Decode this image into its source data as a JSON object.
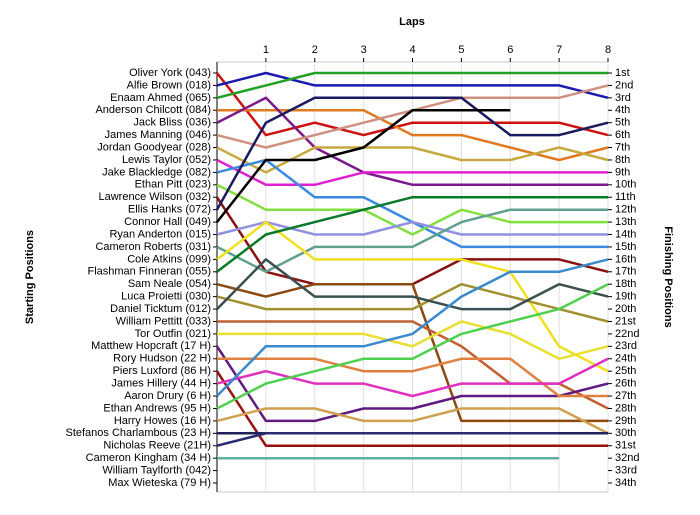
{
  "chart_data": {
    "type": "lap",
    "title": "Laps",
    "y_label": "Starting Positions",
    "y2_label": "Finishing Positions",
    "x": [
      0,
      1,
      2,
      3,
      4,
      5,
      6,
      7,
      8
    ],
    "xlim": [
      0,
      8
    ],
    "xticks": [
      1,
      2,
      3,
      4,
      5,
      6,
      7,
      8
    ],
    "ylim": [
      1,
      34
    ],
    "grid": true,
    "y2ticks": [
      {
        "value": 1,
        "label": "1st"
      },
      {
        "value": 2,
        "label": "2nd"
      },
      {
        "value": 3,
        "label": "3rd"
      },
      {
        "value": 4,
        "label": "4th"
      },
      {
        "value": 5,
        "label": "5th"
      },
      {
        "value": 6,
        "label": "6th"
      },
      {
        "value": 7,
        "label": "7th"
      },
      {
        "value": 8,
        "label": "8th"
      },
      {
        "value": 9,
        "label": "9th"
      },
      {
        "value": 10,
        "label": "10th"
      },
      {
        "value": 11,
        "label": "11th"
      },
      {
        "value": 12,
        "label": "12th"
      },
      {
        "value": 13,
        "label": "13th"
      },
      {
        "value": 14,
        "label": "14th"
      },
      {
        "value": 15,
        "label": "15th"
      },
      {
        "value": 16,
        "label": "16th"
      },
      {
        "value": 17,
        "label": "17th"
      },
      {
        "value": 18,
        "label": "18th"
      },
      {
        "value": 19,
        "label": "19th"
      },
      {
        "value": 20,
        "label": "20th"
      },
      {
        "value": 21,
        "label": "21st"
      },
      {
        "value": 22,
        "label": "22nd"
      },
      {
        "value": 23,
        "label": "23rd"
      },
      {
        "value": 24,
        "label": "24th"
      },
      {
        "value": 25,
        "label": "25th"
      },
      {
        "value": 26,
        "label": "26th"
      },
      {
        "value": 27,
        "label": "27th"
      },
      {
        "value": 28,
        "label": "28th"
      },
      {
        "value": 29,
        "label": "29th"
      },
      {
        "value": 30,
        "label": "30th"
      },
      {
        "value": 31,
        "label": "31st"
      },
      {
        "value": 32,
        "label": "32nd"
      },
      {
        "value": 33,
        "label": "33rd"
      },
      {
        "value": 34,
        "label": "34th"
      }
    ],
    "series": [
      {
        "name": "Oliver York (043)",
        "color": "#cc1111",
        "values": [
          1,
          6,
          5,
          6,
          5,
          5,
          5,
          5,
          6
        ]
      },
      {
        "name": "Alfie Brown (018)",
        "color": "#1a1ab0",
        "values": [
          2,
          1,
          2,
          2,
          2,
          2,
          2,
          2,
          3
        ]
      },
      {
        "name": "Enaam Ahmed (065)",
        "color": "#22a022",
        "values": [
          3,
          2,
          1,
          1,
          1,
          1,
          1,
          1,
          1
        ]
      },
      {
        "name": "Anderson Chilcott (084)",
        "color": "#e07a20",
        "values": [
          4,
          4,
          4,
          4,
          6,
          6,
          7,
          8,
          7
        ]
      },
      {
        "name": "Jack Bliss (036)",
        "color": "#7a1a8a",
        "values": [
          5,
          3,
          7,
          9,
          10,
          10,
          10,
          10,
          10
        ]
      },
      {
        "name": "James Manning (046)",
        "color": "#d09080",
        "values": [
          6,
          7,
          6,
          5,
          4,
          3,
          3,
          3,
          2
        ]
      },
      {
        "name": "Jordan Goodyear (028)",
        "color": "#c8a840",
        "values": [
          7,
          9,
          7,
          7,
          7,
          8,
          8,
          7,
          8
        ]
      },
      {
        "name": "Lewis Taylor (052)",
        "color": "#e020d0",
        "values": [
          8,
          10,
          10,
          9,
          9,
          9,
          9,
          9,
          9
        ]
      },
      {
        "name": "Jake Blackledge (082)",
        "color": "#3a8ae0",
        "values": [
          9,
          8,
          11,
          11,
          13,
          15,
          15,
          15,
          15
        ]
      },
      {
        "name": "Ethan Pitt (023)",
        "color": "#80e040",
        "values": [
          10,
          12,
          12,
          12,
          14,
          12,
          13,
          13,
          13
        ]
      },
      {
        "name": "Lawrence Wilson (032)",
        "color": "#8a1010",
        "values": [
          11,
          17,
          18,
          18,
          18,
          16,
          16,
          16,
          17
        ]
      },
      {
        "name": "Ellis Hanks (072)",
        "color": "#1a1a60",
        "values": [
          12,
          5,
          3,
          3,
          3,
          3,
          6,
          6,
          5
        ]
      },
      {
        "name": "Connor Hall (049)",
        "color": "#000000",
        "values": [
          13,
          8,
          8,
          7,
          4,
          4,
          4,
          null,
          null
        ]
      },
      {
        "name": "Ryan Anderton (015)",
        "color": "#9090e0",
        "values": [
          14,
          13,
          14,
          14,
          13,
          14,
          14,
          14,
          14
        ]
      },
      {
        "name": "Cameron Roberts (031)",
        "color": "#60a090",
        "values": [
          15,
          17,
          15,
          15,
          15,
          13,
          12,
          12,
          12
        ]
      },
      {
        "name": "Cole Atkins (099)",
        "color": "#f0e020",
        "values": [
          16,
          13,
          16,
          16,
          16,
          16,
          17,
          23,
          25
        ]
      },
      {
        "name": "Flashman Finneran (055)",
        "color": "#0a7a2a",
        "values": [
          17,
          14,
          13,
          12,
          11,
          11,
          11,
          11,
          11
        ]
      },
      {
        "name": "Sam Neale (054)",
        "color": "#8a4a10",
        "values": [
          18,
          19,
          18,
          18,
          18,
          29,
          29,
          29,
          29
        ]
      },
      {
        "name": "Luca Proietti (030)",
        "color": "#a09030",
        "values": [
          19,
          20,
          20,
          20,
          20,
          18,
          19,
          20,
          21
        ]
      },
      {
        "name": "Daniel Ticktum (012)",
        "color": "#3a5050",
        "values": [
          20,
          16,
          19,
          19,
          19,
          20,
          20,
          18,
          19
        ]
      },
      {
        "name": "William Pettitt (033)",
        "color": "#c06030",
        "values": [
          21,
          21,
          21,
          21,
          21,
          23,
          26,
          26,
          28
        ]
      },
      {
        "name": "Tor Outfin (021)",
        "color": "#e8e030",
        "values": [
          22,
          22,
          22,
          22,
          23,
          21,
          22,
          24,
          23
        ]
      },
      {
        "name": "Matthew Hopcraft (17 H)",
        "color": "#601a80",
        "values": [
          23,
          29,
          29,
          28,
          28,
          27,
          27,
          27,
          26
        ]
      },
      {
        "name": "Rory Hudson (22 H)",
        "color": "#e08040",
        "values": [
          24,
          24,
          24,
          25,
          25,
          24,
          24,
          27,
          27
        ]
      },
      {
        "name": "Piers Luxford (86 H)",
        "color": "#9a1010",
        "values": [
          25,
          31,
          31,
          31,
          31,
          31,
          31,
          31,
          31
        ]
      },
      {
        "name": "James Hillery (44 H)",
        "color": "#e030c0",
        "values": [
          26,
          25,
          26,
          26,
          27,
          26,
          26,
          26,
          24
        ]
      },
      {
        "name": "Aaron Drury (6 H)",
        "color": "#3a8ad0",
        "values": [
          27,
          23,
          23,
          23,
          22,
          19,
          17,
          17,
          16
        ]
      },
      {
        "name": "Ethan Andrews (95 H)",
        "color": "#50d050",
        "values": [
          28,
          26,
          25,
          24,
          24,
          22,
          21,
          20,
          18
        ]
      },
      {
        "name": "Harry Howes (16 H)",
        "color": "#d0a050",
        "values": [
          29,
          28,
          28,
          29,
          29,
          28,
          28,
          28,
          30
        ]
      },
      {
        "name": "Stefanos Charlambous (23 H)",
        "color": "#20205a",
        "values": [
          30,
          30,
          30,
          30,
          30,
          30,
          30,
          30,
          30
        ]
      },
      {
        "name": "Nicholas Reeve (21H)",
        "color": "#2a2a70",
        "values": [
          31,
          30,
          30,
          30,
          30,
          30,
          30,
          30,
          null
        ]
      },
      {
        "name": "Cameron Kingham (34 H)",
        "color": "#60b0a0",
        "values": [
          32,
          32,
          32,
          32,
          32,
          32,
          32,
          32,
          null
        ]
      },
      {
        "name": "William Taylforth (042)",
        "color": "#888888",
        "values": [
          33,
          null,
          null,
          null,
          null,
          null,
          null,
          null,
          null
        ]
      },
      {
        "name": "Max Wieteska (79 H)",
        "color": "#888888",
        "values": [
          34,
          null,
          null,
          null,
          null,
          null,
          null,
          null,
          null
        ]
      }
    ]
  }
}
